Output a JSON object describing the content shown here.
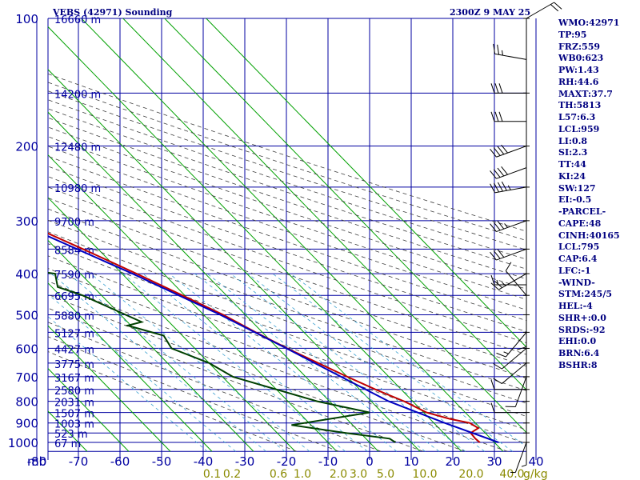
{
  "header": {
    "title": "VEBS (42971) Sounding",
    "valid_time": "2300Z  9 MAY 25"
  },
  "colors": {
    "grid": "#0000a0",
    "isotherm": "#00a000",
    "dry_adiabat": "#404040",
    "mixing_ratio": "#3aa0d0",
    "temperature": "#c00000",
    "dewpoint": "#004000",
    "parcel": "#0000c0",
    "text": "#000080",
    "wind": "#000000"
  },
  "indices": [
    "WMO:42971",
    "TP:95",
    "FRZ:559",
    "WB0:623",
    "PW:1.43",
    "RH:44.6",
    "MAXT:37.7",
    "TH:5813",
    "L57:6.3",
    "LCL:959",
    "LI:0.8",
    "SI:2.3",
    "TT:44",
    "KI:24",
    "SW:127",
    "EI:-0.5",
    "-PARCEL-",
    "CAPE:48",
    "CINH:40165",
    "LCL:795",
    "CAP:6.4",
    "LFC:-1",
    "-WIND-",
    "STM:245/5",
    "HEL:-4",
    "SHR+:0.0",
    "SRDS:-92",
    "EHI:0.0",
    "BRN:6.4",
    "BSHR:8"
  ],
  "chart_data": {
    "type": "line",
    "chart_kind": "skew-T log-P thermodynamic diagram",
    "pressure_axis": {
      "label": "mb",
      "scale": "log",
      "ticks": [
        100,
        200,
        300,
        400,
        500,
        600,
        700,
        800,
        900,
        1000
      ],
      "range": [
        100,
        1050
      ]
    },
    "temperature_axis": {
      "ticks": [
        -80,
        -70,
        -60,
        -50,
        -40,
        -30,
        -20,
        -10,
        0,
        10,
        20,
        30,
        40
      ],
      "range": [
        -80,
        40
      ]
    },
    "height_labels": [
      {
        "p": 100,
        "label": "16660 m"
      },
      {
        "p": 150,
        "label": "14200 m"
      },
      {
        "p": 200,
        "label": "12480 m"
      },
      {
        "p": 250,
        "label": "10980 m"
      },
      {
        "p": 300,
        "label": "9700 m"
      },
      {
        "p": 350,
        "label": "8584 m"
      },
      {
        "p": 400,
        "label": "7590 m"
      },
      {
        "p": 450,
        "label": "6695 m"
      },
      {
        "p": 500,
        "label": "5880 m"
      },
      {
        "p": 550,
        "label": "5127 m"
      },
      {
        "p": 600,
        "label": "4427 m"
      },
      {
        "p": 650,
        "label": "3775 m"
      },
      {
        "p": 700,
        "label": "3167 m"
      },
      {
        "p": 750,
        "label": "2580 m"
      },
      {
        "p": 800,
        "label": "2031 m"
      },
      {
        "p": 850,
        "label": "1507 m"
      },
      {
        "p": 900,
        "label": "1003 m"
      },
      {
        "p": 950,
        "label": "523 m"
      },
      {
        "p": 1000,
        "label": "67 m"
      }
    ],
    "mixing_ratio_labels": [
      "0.1",
      "0.2",
      "0.6",
      "1.0",
      "2.0",
      "3.0",
      "5.0",
      "10.0",
      "20.0",
      "40.0"
    ],
    "mixing_ratio_unit": "g/kg",
    "series": [
      {
        "key": "temperature",
        "points": [
          [
            100,
            -80.8
          ],
          [
            130,
            -64
          ],
          [
            150,
            -61
          ],
          [
            200,
            -50.5
          ],
          [
            250,
            -40.2
          ],
          [
            270,
            -37.5
          ],
          [
            300,
            -32.2
          ],
          [
            350,
            -23.6
          ],
          [
            400,
            -16.5
          ],
          [
            450,
            -10.6
          ],
          [
            500,
            -5.3
          ],
          [
            550,
            -1.6
          ],
          [
            600,
            2.2
          ],
          [
            650,
            6.2
          ],
          [
            700,
            10
          ],
          [
            750,
            13.8
          ],
          [
            800,
            17.9
          ],
          [
            850,
            20.7
          ],
          [
            880,
            24.8
          ],
          [
            900,
            28.6
          ],
          [
            925,
            29.5
          ],
          [
            950,
            26.5
          ],
          [
            980,
            26.3
          ],
          [
            1000,
            26.5
          ]
        ]
      },
      {
        "key": "dewpoint",
        "points": [
          [
            150,
            -80
          ],
          [
            200,
            -71
          ],
          [
            230,
            -69
          ],
          [
            250,
            -62
          ],
          [
            270,
            -62
          ],
          [
            300,
            -55
          ],
          [
            350,
            -51
          ],
          [
            360,
            -43
          ],
          [
            390,
            -42.8
          ],
          [
            400,
            -36.1
          ],
          [
            430,
            -38.6
          ],
          [
            450,
            -34.6
          ],
          [
            520,
            -26.6
          ],
          [
            530,
            -30.8
          ],
          [
            560,
            -24.5
          ],
          [
            600,
            -25.6
          ],
          [
            650,
            -20
          ],
          [
            700,
            -17.5
          ],
          [
            800,
            -3
          ],
          [
            850,
            7
          ],
          [
            910,
            -14.7
          ],
          [
            950,
            -3.5
          ],
          [
            980,
            5.7
          ],
          [
            1000,
            6.2
          ]
        ]
      },
      {
        "key": "parcel",
        "points": [
          [
            125,
            -80
          ],
          [
            200,
            -56.5
          ],
          [
            300,
            -33.8
          ],
          [
            400,
            -17.5
          ],
          [
            500,
            -6
          ],
          [
            600,
            2
          ],
          [
            700,
            8.5
          ],
          [
            800,
            14.2
          ],
          [
            900,
            22.6
          ],
          [
            1000,
            31
          ]
        ]
      }
    ],
    "wind_barbs": [
      {
        "p": 100,
        "dir": 60,
        "spd": 20
      },
      {
        "p": 125,
        "dir": 280,
        "spd": 25
      },
      {
        "p": 150,
        "dir": 270,
        "spd": 30
      },
      {
        "p": 175,
        "dir": 270,
        "spd": 30
      },
      {
        "p": 200,
        "dir": 250,
        "spd": 40
      },
      {
        "p": 225,
        "dir": 250,
        "spd": 40
      },
      {
        "p": 250,
        "dir": 260,
        "spd": 45
      },
      {
        "p": 300,
        "dir": 250,
        "spd": 35
      },
      {
        "p": 350,
        "dir": 250,
        "spd": 30
      },
      {
        "p": 400,
        "dir": 240,
        "spd": 25
      },
      {
        "p": 425,
        "dir": 270,
        "spd": 15
      },
      {
        "p": 450,
        "dir": 320,
        "spd": 10
      },
      {
        "p": 500,
        "dir": 180,
        "spd": 10
      },
      {
        "p": 550,
        "dir": 220,
        "spd": 15
      },
      {
        "p": 600,
        "dir": 230,
        "spd": 10
      },
      {
        "p": 650,
        "dir": 230,
        "spd": 10
      },
      {
        "p": 700,
        "dir": 200,
        "spd": 10
      },
      {
        "p": 750,
        "dir": 270,
        "spd": 10
      },
      {
        "p": 850,
        "dir": 270,
        "spd": 10
      },
      {
        "p": 950,
        "dir": 180,
        "spd": 5
      },
      {
        "p": 1000,
        "dir": 200,
        "spd": 5
      }
    ]
  }
}
